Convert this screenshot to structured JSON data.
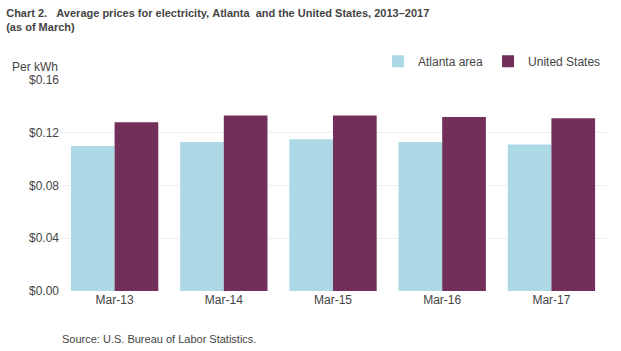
{
  "chart_data": {
    "type": "bar",
    "title": "Chart 2.   Average prices for electricity, Atlanta  and the United States, 2013–2017",
    "subtitle": "(as of March)",
    "ylabel": "Per kWh",
    "annotations": [
      "Source: U.S. Bureau of Labor Statistics."
    ],
    "categories": [
      "Mar-13",
      "Mar-14",
      "Mar-15",
      "Mar-16",
      "Mar-17"
    ],
    "series": [
      {
        "name": "Atlanta area",
        "color": "#add8e6",
        "values": [
          0.11,
          0.113,
          0.115,
          0.113,
          0.111
        ]
      },
      {
        "name": "United States",
        "color": "#722f5a",
        "values": [
          0.128,
          0.133,
          0.133,
          0.132,
          0.131
        ]
      }
    ],
    "ylim": [
      0,
      0.16
    ],
    "yticks": [
      {
        "value": 0.0,
        "label": "$0.00"
      },
      {
        "value": 0.04,
        "label": "$0.04"
      },
      {
        "value": 0.08,
        "label": "$0.08"
      },
      {
        "value": 0.12,
        "label": "$0.12"
      },
      {
        "value": 0.16,
        "label": "$0.16"
      }
    ],
    "grid": true,
    "legend": "upper right"
  }
}
